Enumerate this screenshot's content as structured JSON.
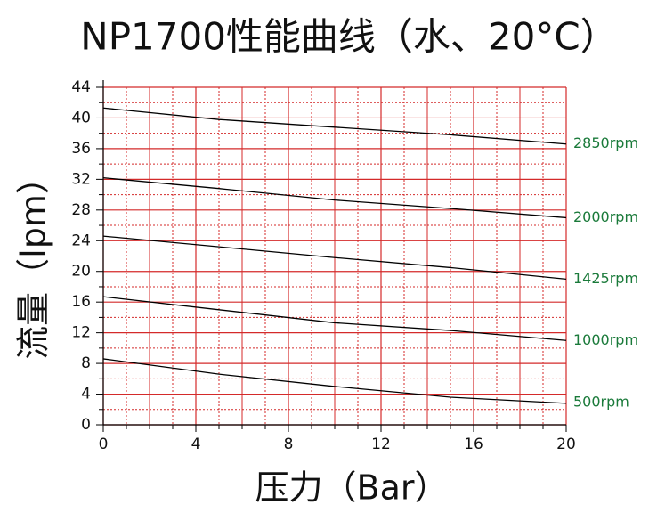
{
  "chart_data": {
    "type": "line",
    "title": "NP1700性能曲线（水、20°C）",
    "x_label": "压力（Bar）",
    "y_label": "流量（lpm）",
    "x": [
      0,
      5,
      10,
      15,
      20
    ],
    "series": [
      {
        "name": "2850rpm",
        "color": "#000000",
        "values": [
          41.3,
          39.8,
          38.8,
          37.8,
          36.6
        ]
      },
      {
        "name": "2000rpm",
        "color": "#000000",
        "values": [
          32.2,
          30.8,
          29.3,
          28.2,
          27
        ]
      },
      {
        "name": "1425rpm",
        "color": "#000000",
        "values": [
          24.6,
          23.2,
          21.8,
          20.5,
          19
        ]
      },
      {
        "name": "1000rpm",
        "color": "#000000",
        "values": [
          16.7,
          15,
          13.3,
          12.3,
          11
        ]
      },
      {
        "name": "500rpm",
        "color": "#000000",
        "values": [
          8.6,
          6.6,
          5,
          3.6,
          2.8
        ]
      }
    ],
    "label_color": "#1a7a3a",
    "grid_color": "#d42a2a",
    "xlim": [
      0,
      20
    ],
    "xticks": [
      0,
      4,
      8,
      12,
      16,
      20
    ],
    "ylim": [
      0,
      44
    ],
    "yticks": [
      0,
      4,
      8,
      12,
      16,
      20,
      24,
      28,
      32,
      36,
      40,
      44
    ],
    "grid": true
  }
}
